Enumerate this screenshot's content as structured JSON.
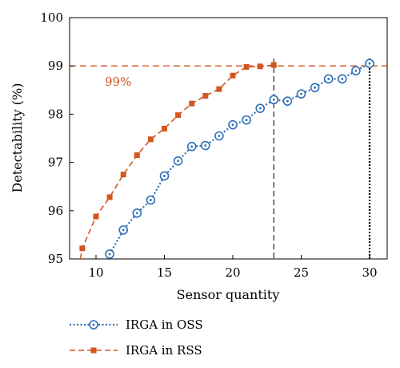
{
  "chart_data": {
    "type": "line",
    "xlabel": "Sensor quantity",
    "ylabel": "Detectability (%)",
    "xlim": [
      8,
      31
    ],
    "ylim": [
      95,
      100
    ],
    "x_ticks": [
      10,
      15,
      20,
      25,
      30
    ],
    "y_ticks": [
      95,
      96,
      97,
      98,
      99,
      100
    ],
    "annotation": {
      "text": "99%",
      "color": "#d2561f"
    },
    "reference_lines": [
      {
        "orientation": "horizontal",
        "value": 99,
        "style": "dashed",
        "color": "#d2561f"
      },
      {
        "orientation": "vertical",
        "value": 23,
        "style": "dashed",
        "color": "#333333"
      },
      {
        "orientation": "vertical",
        "value": 30,
        "style": "dotted",
        "color": "#000000"
      }
    ],
    "legend_position": "bottom-left",
    "series": [
      {
        "name": "IRGA in OSS",
        "color": "#2e6fb7",
        "line_style": "dotted",
        "marker": "circle-dot",
        "x": [
          11,
          12,
          13,
          14,
          15,
          16,
          17,
          18,
          19,
          20,
          21,
          22,
          23,
          24,
          25,
          26,
          27,
          28,
          29,
          30
        ],
        "values": [
          95.1,
          95.6,
          95.95,
          96.22,
          96.72,
          97.03,
          97.33,
          97.35,
          97.55,
          97.78,
          97.88,
          98.12,
          98.3,
          98.27,
          98.42,
          98.55,
          98.73,
          98.73,
          98.9,
          99.05
        ]
      },
      {
        "name": "IRGA in RSS",
        "color": "#d2561f",
        "line_style": "dashed",
        "marker": "square",
        "x": [
          9,
          10,
          11,
          12,
          13,
          14,
          15,
          16,
          17,
          18,
          19,
          20,
          21,
          22,
          23
        ],
        "values": [
          95.22,
          95.88,
          96.28,
          96.75,
          97.15,
          97.48,
          97.7,
          97.98,
          98.22,
          98.38,
          98.52,
          98.8,
          98.98,
          98.99,
          99.02
        ]
      }
    ]
  }
}
